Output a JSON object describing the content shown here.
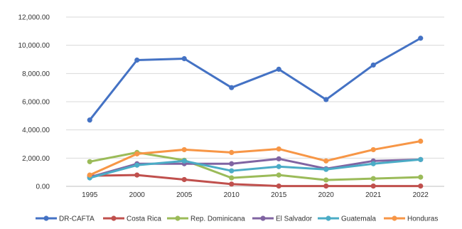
{
  "chart_data": {
    "type": "line",
    "categories": [
      "1995",
      "2000",
      "2005",
      "2010",
      "2015",
      "2020",
      "2021",
      "2022"
    ],
    "ylim": [
      0,
      12000
    ],
    "yticks": [
      "0.00",
      "2,000.00",
      "4,000.00",
      "6,000.00",
      "8,000.00",
      "10,000.00",
      "12,000.00"
    ],
    "ytick_values": [
      0,
      2000,
      4000,
      6000,
      8000,
      10000,
      12000
    ],
    "grid": "horizontal",
    "legend_position": "bottom",
    "series": [
      {
        "name": "DR-CAFTA",
        "color": "#4472C4",
        "values": [
          4700,
          8950,
          9050,
          7000,
          8300,
          6150,
          8600,
          10500
        ]
      },
      {
        "name": "Costa Rica",
        "color": "#C0504D",
        "values": [
          750,
          800,
          480,
          160,
          20,
          20,
          20,
          20
        ]
      },
      {
        "name": "Rep. Dominicana",
        "color": "#9BBB59",
        "values": [
          1750,
          2400,
          1850,
          600,
          800,
          450,
          550,
          650
        ]
      },
      {
        "name": "El Salvador",
        "color": "#8064A2",
        "values": [
          650,
          1600,
          1600,
          1600,
          1950,
          1250,
          1800,
          1900
        ]
      },
      {
        "name": "Guatemala",
        "color": "#4BACC6",
        "values": [
          600,
          1500,
          1800,
          1100,
          1400,
          1200,
          1600,
          1900
        ]
      },
      {
        "name": "Honduras",
        "color": "#F79646",
        "values": [
          800,
          2300,
          2600,
          2400,
          2650,
          1800,
          2600,
          3200
        ]
      }
    ]
  }
}
